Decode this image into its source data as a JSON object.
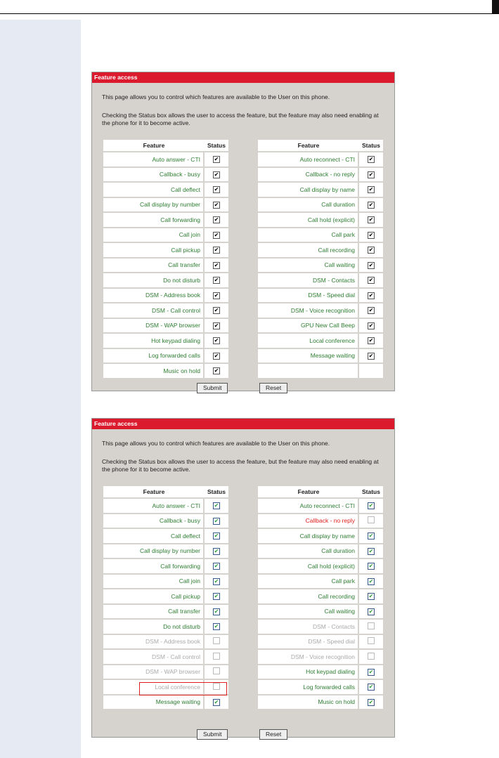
{
  "panel_title": "Feature access",
  "intro": "This page allows you to control which features are available to the User on this phone.",
  "note": "Checking the Status box allows the user to access the feature, but the feature may also need enabling at the phone for it to become active.",
  "col_feature": "Feature",
  "col_status": "Status",
  "submit": "Submit",
  "reset": "Reset",
  "screen1": {
    "left": [
      [
        "Auto answer - CTI",
        1
      ],
      [
        "Callback - busy",
        1
      ],
      [
        "Call deflect",
        1
      ],
      [
        "Call display by number",
        1
      ],
      [
        "Call forwarding",
        1
      ],
      [
        "Call join",
        1
      ],
      [
        "Call pickup",
        1
      ],
      [
        "Call transfer",
        1
      ],
      [
        "Do not disturb",
        1
      ],
      [
        "DSM - Address book",
        1
      ],
      [
        "DSM - Call control",
        1
      ],
      [
        "DSM - WAP browser",
        1
      ],
      [
        "Hot keypad dialing",
        1
      ],
      [
        "Log forwarded calls",
        1
      ],
      [
        "Music on hold",
        1
      ]
    ],
    "right": [
      [
        "Auto reconnect - CTI",
        1
      ],
      [
        "Callback - no reply",
        1
      ],
      [
        "Call display by name",
        1
      ],
      [
        "Call duration",
        1
      ],
      [
        "Call hold (explicit)",
        1
      ],
      [
        "Call park",
        1
      ],
      [
        "Call recording",
        1
      ],
      [
        "Call waiting",
        1
      ],
      [
        "DSM - Contacts",
        1
      ],
      [
        "DSM - Speed dial",
        1
      ],
      [
        "DSM - Voice recognition",
        1
      ],
      [
        "GPU New Call Beep",
        1
      ],
      [
        "Local conference",
        1
      ],
      [
        "Message waiting",
        1
      ],
      [
        "",
        null
      ]
    ]
  },
  "screen2": {
    "left": [
      [
        "Auto answer - CTI",
        1
      ],
      [
        "Callback - busy",
        1
      ],
      [
        "Call deflect",
        1
      ],
      [
        "Call display by number",
        1
      ],
      [
        "Call forwarding",
        1
      ],
      [
        "Call join",
        1
      ],
      [
        "Call pickup",
        1
      ],
      [
        "Call transfer",
        1
      ],
      [
        "Do not disturb",
        1
      ],
      [
        "DSM - Address book",
        0
      ],
      [
        "DSM - Call control",
        0
      ],
      [
        "DSM - WAP browser",
        0
      ],
      [
        "Local conference",
        0
      ],
      [
        "Message waiting",
        1
      ]
    ],
    "right": [
      [
        "Auto reconnect - CTI",
        1
      ],
      [
        "Callback - no reply",
        2
      ],
      [
        "Call display by name",
        1
      ],
      [
        "Call duration",
        1
      ],
      [
        "Call hold (explicit)",
        1
      ],
      [
        "Call park",
        1
      ],
      [
        "Call recording",
        1
      ],
      [
        "Call waiting",
        1
      ],
      [
        "DSM - Contacts",
        0
      ],
      [
        "DSM - Speed dial",
        0
      ],
      [
        "DSM - Voice recognition",
        0
      ],
      [
        "Hot keypad dialing",
        1
      ],
      [
        "Log forwarded calls",
        1
      ],
      [
        "Music on hold",
        1
      ]
    ]
  },
  "highlighted_feature": "Local conference"
}
